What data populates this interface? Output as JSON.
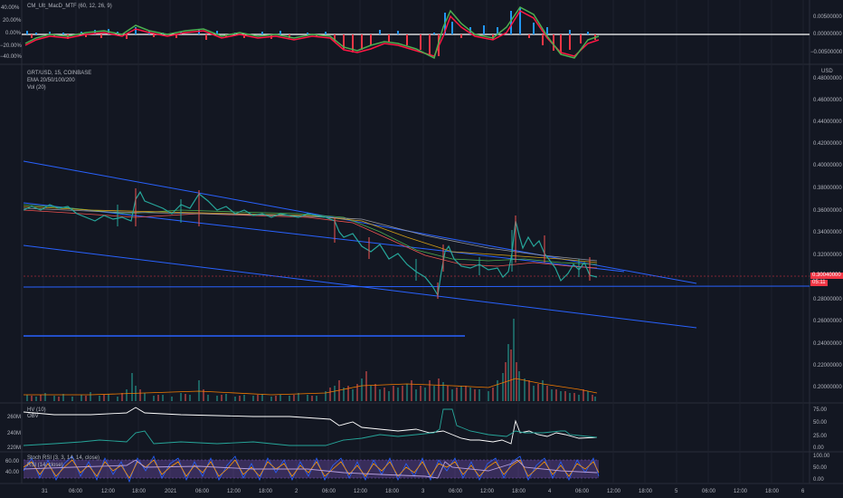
{
  "macd_pane": {
    "title": "CM_Ult_MacD_MTF (60, 12, 26, 9)",
    "left_ticks": [
      "40.00%",
      "20.00%",
      "0.00%",
      "−20.00%",
      "−40.00%"
    ],
    "right_ticks": [
      "0.00500000",
      "0.00000000",
      "−0.00500000"
    ]
  },
  "main_pane": {
    "symbol": "GRT/USD, 15, COINBASE",
    "ema": "EMA 20/50/100/200",
    "vol": "Vol (20)",
    "currency": "USD",
    "price_ticks": [
      "0.48000000",
      "0.46000000",
      "0.44000000",
      "0.42000000",
      "0.40000000",
      "0.38000000",
      "0.36000000",
      "0.34000000",
      "0.32000000",
      "0.30000000",
      "0.28000000",
      "0.26000000",
      "0.24000000",
      "0.22000000",
      "0.20000000"
    ],
    "last_price": "0.30040000",
    "countdown": "05:11",
    "colors": {
      "up": "#26a69a",
      "down": "#ef5350",
      "trend": "#2962ff",
      "price_tag": "#f23645"
    }
  },
  "obv_pane": {
    "hv_label": "HV (10)",
    "obv_label": "OBV",
    "left_ticks": [
      "260M",
      "240M",
      "220M"
    ],
    "right_ticks": [
      "75.00",
      "50.00",
      "25.00",
      "0.00"
    ]
  },
  "stoch_pane": {
    "stoch_label": "Stoch RSI (3, 3, 14, 14, close)",
    "rsi_label": "RSI (14, close)",
    "left_ticks": [
      "60.00",
      "40.00"
    ],
    "right_ticks": [
      "100.00",
      "50.00",
      "0.00"
    ]
  },
  "time_axis": {
    "labels": [
      "31",
      "06:00",
      "12:00",
      "18:00",
      "2021",
      "06:00",
      "12:00",
      "18:00",
      "2",
      "06:00",
      "12:00",
      "18:00",
      "3",
      "06:00",
      "12:00",
      "18:00",
      "4",
      "06:00",
      "12:00",
      "18:00",
      "5",
      "06:00",
      "12:00",
      "18:00",
      "6"
    ]
  },
  "chart_data": {
    "type": "candlestick",
    "symbol": "GRT/USD",
    "interval": "15",
    "exchange": "COINBASE",
    "y_range": [
      0.19,
      0.48
    ],
    "last_price": 0.3004
  }
}
